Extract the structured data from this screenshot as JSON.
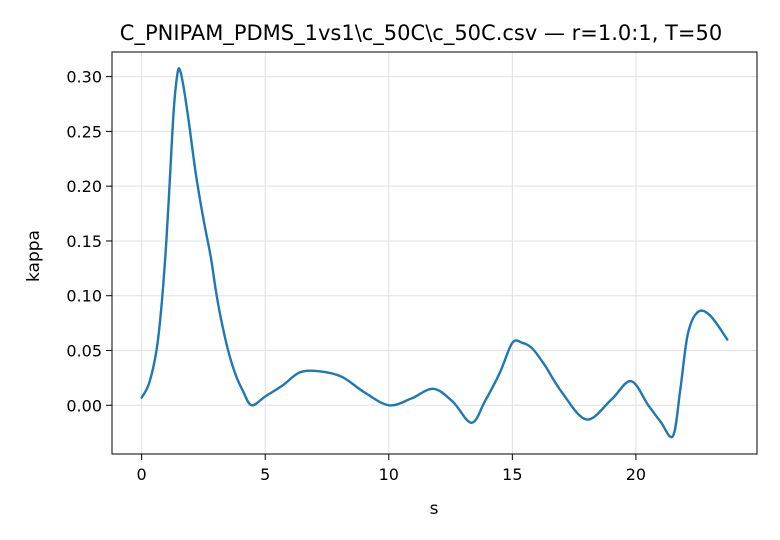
{
  "chart_data": {
    "type": "line",
    "title": "C_PNIPAM_PDMS_1vs1\\c_50C\\c_50C.csv — r=1.0:1, T=50",
    "xlabel": "s",
    "ylabel": "kappa",
    "xlim": [
      -1.2,
      24.9
    ],
    "ylim": [
      -0.0445,
      0.3225
    ],
    "xticks": [
      0,
      5,
      10,
      15,
      20
    ],
    "xtick_labels": [
      "0",
      "5",
      "10",
      "15",
      "20"
    ],
    "yticks": [
      0.0,
      0.05,
      0.1,
      0.15,
      0.2,
      0.25,
      0.3
    ],
    "ytick_labels": [
      "0.00",
      "0.05",
      "0.10",
      "0.15",
      "0.20",
      "0.25",
      "0.30"
    ],
    "grid": true,
    "series": [
      {
        "color": "#1f77b4",
        "x": [
          0,
          0.3,
          0.6,
          0.8,
          1.0,
          1.15,
          1.3,
          1.45,
          1.55,
          1.7,
          1.9,
          2.2,
          2.5,
          2.8,
          3.0,
          3.2,
          3.5,
          3.8,
          4.1,
          4.45,
          5.0,
          5.7,
          6.4,
          7.2,
          8.1,
          9.0,
          10.0,
          10.9,
          11.8,
          12.6,
          13.35,
          13.9,
          14.5,
          15.0,
          15.4,
          15.8,
          16.3,
          17.0,
          18.0,
          19.0,
          19.8,
          20.5,
          21.0,
          21.5,
          21.8,
          22.1,
          22.5,
          23.0,
          23.7
        ],
        "values": [
          0.007,
          0.02,
          0.05,
          0.09,
          0.15,
          0.21,
          0.27,
          0.303,
          0.306,
          0.29,
          0.26,
          0.21,
          0.17,
          0.135,
          0.105,
          0.08,
          0.05,
          0.028,
          0.013,
          0.0,
          0.008,
          0.018,
          0.03,
          0.031,
          0.026,
          0.012,
          0.0,
          0.006,
          0.015,
          0.003,
          -0.016,
          0.004,
          0.03,
          0.057,
          0.057,
          0.052,
          0.037,
          0.012,
          -0.013,
          0.005,
          0.022,
          0.0,
          -0.015,
          -0.028,
          0.015,
          0.065,
          0.085,
          0.082,
          0.06
        ]
      }
    ]
  }
}
